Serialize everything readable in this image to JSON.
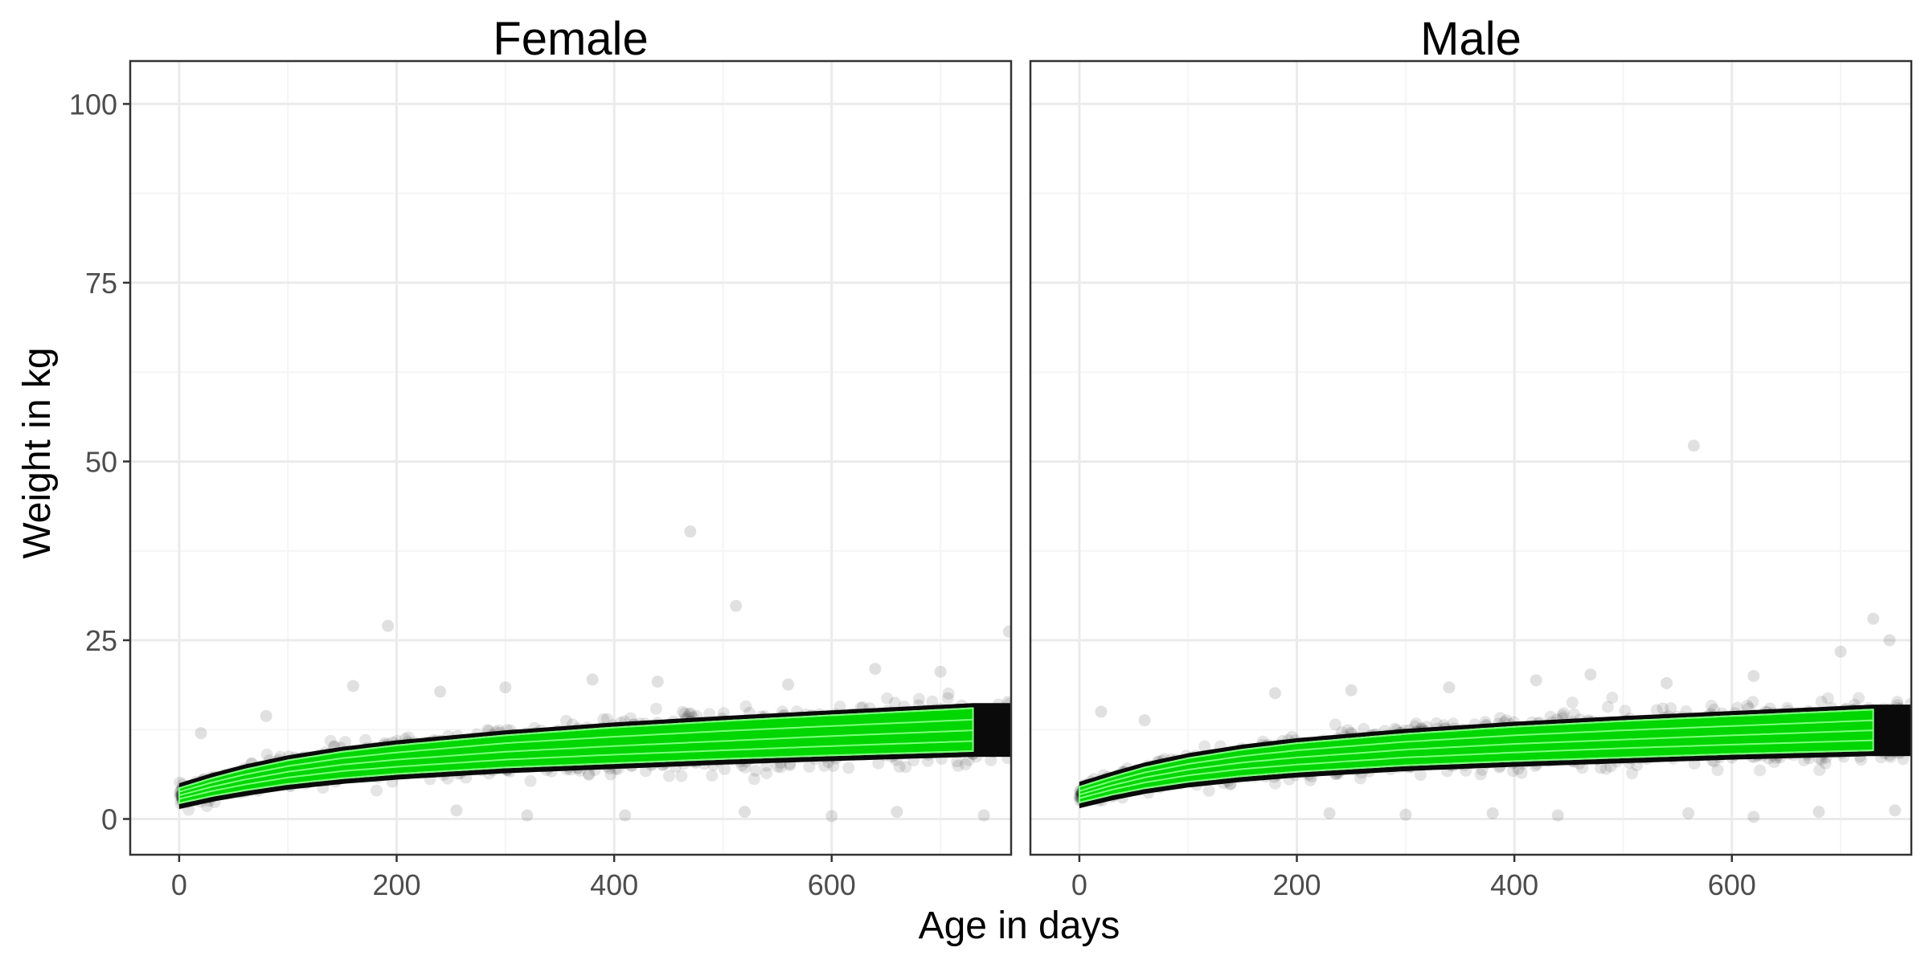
{
  "chart_data": {
    "type": "scatter",
    "xlabel": "Age in days",
    "ylabel": "Weight in kg",
    "xlim": [
      -45,
      765
    ],
    "ylim": [
      -5,
      106
    ],
    "x_ticks": [
      0,
      200,
      400,
      600
    ],
    "x_tick_labels": [
      "0",
      "200",
      "400",
      "600"
    ],
    "y_ticks": [
      0,
      25,
      50,
      75,
      100
    ],
    "y_tick_labels": [
      "0",
      "25",
      "50",
      "75",
      "100"
    ],
    "grid": true,
    "legend": "none",
    "colors": {
      "points": "#000000",
      "band_fill": "#00d600",
      "band_lines": "#7dff7d",
      "grid_major": "#ebebeb",
      "grid_minor": "#f5f5f5",
      "panel_border": "#333333"
    },
    "panels": [
      {
        "title": "Female",
        "centile_age": [
          0,
          30,
          60,
          100,
          150,
          200,
          300,
          400,
          500,
          600,
          730
        ],
        "centiles": [
          {
            "p": 3,
            "values": [
              2.2,
              3.2,
              4.0,
              4.9,
              5.7,
              6.3,
              7.2,
              7.8,
              8.4,
              8.9,
              9.5
            ]
          },
          {
            "p": 15,
            "values": [
              2.8,
              3.9,
              4.8,
              5.8,
              6.7,
              7.3,
              8.3,
              9.0,
              9.6,
              10.2,
              10.9
            ]
          },
          {
            "p": 50,
            "values": [
              3.3,
              4.5,
              5.5,
              6.6,
              7.6,
              8.3,
              9.4,
              10.2,
              10.9,
              11.6,
              12.4
            ]
          },
          {
            "p": 85,
            "values": [
              3.8,
              5.1,
              6.2,
              7.4,
              8.5,
              9.3,
              10.6,
              11.5,
              12.3,
              13.0,
              13.9
            ]
          },
          {
            "p": 97,
            "values": [
              4.3,
              5.7,
              6.9,
              8.2,
              9.4,
              10.3,
              11.7,
              12.8,
              13.7,
              14.5,
              15.5
            ]
          }
        ],
        "outliers": [
          {
            "x": 470,
            "y": 40.2
          },
          {
            "x": 512,
            "y": 29.8
          },
          {
            "x": 192,
            "y": 27.0
          },
          {
            "x": 763,
            "y": 26.2
          },
          {
            "x": 160,
            "y": 18.6
          },
          {
            "x": 380,
            "y": 19.5
          },
          {
            "x": 440,
            "y": 19.2
          },
          {
            "x": 560,
            "y": 18.8
          },
          {
            "x": 640,
            "y": 21.0
          },
          {
            "x": 700,
            "y": 20.6
          },
          {
            "x": 240,
            "y": 17.8
          },
          {
            "x": 300,
            "y": 18.4
          },
          {
            "x": 20,
            "y": 12.0
          },
          {
            "x": 80,
            "y": 14.4
          },
          {
            "x": 320,
            "y": 0.5
          },
          {
            "x": 410,
            "y": 0.5
          },
          {
            "x": 520,
            "y": 1.0
          },
          {
            "x": 600,
            "y": 0.4
          },
          {
            "x": 660,
            "y": 1.0
          },
          {
            "x": 740,
            "y": 0.5
          },
          {
            "x": 255,
            "y": 1.2
          }
        ]
      },
      {
        "title": "Male",
        "centile_age": [
          0,
          30,
          60,
          100,
          150,
          200,
          300,
          400,
          500,
          600,
          730
        ],
        "centiles": [
          {
            "p": 3,
            "values": [
              2.3,
              3.4,
              4.3,
              5.2,
              6.0,
              6.6,
              7.5,
              8.1,
              8.6,
              9.1,
              9.6
            ]
          },
          {
            "p": 15,
            "values": [
              2.9,
              4.1,
              5.1,
              6.1,
              7.0,
              7.6,
              8.6,
              9.3,
              9.9,
              10.4,
              11.0
            ]
          },
          {
            "p": 50,
            "values": [
              3.4,
              4.7,
              5.8,
              6.9,
              7.9,
              8.6,
              9.7,
              10.5,
              11.1,
              11.7,
              12.4
            ]
          },
          {
            "p": 85,
            "values": [
              3.9,
              5.3,
              6.5,
              7.7,
              8.8,
              9.6,
              10.8,
              11.7,
              12.4,
              13.0,
              13.8
            ]
          },
          {
            "p": 97,
            "values": [
              4.5,
              5.9,
              7.2,
              8.5,
              9.7,
              10.6,
              11.9,
              12.9,
              13.7,
              14.4,
              15.3
            ]
          }
        ],
        "outliers": [
          {
            "x": 565,
            "y": 52.2
          },
          {
            "x": 730,
            "y": 28.0
          },
          {
            "x": 745,
            "y": 25.0
          },
          {
            "x": 700,
            "y": 23.4
          },
          {
            "x": 620,
            "y": 20.0
          },
          {
            "x": 470,
            "y": 20.2
          },
          {
            "x": 420,
            "y": 19.4
          },
          {
            "x": 180,
            "y": 17.6
          },
          {
            "x": 250,
            "y": 18.0
          },
          {
            "x": 340,
            "y": 18.4
          },
          {
            "x": 540,
            "y": 19.0
          },
          {
            "x": 60,
            "y": 13.8
          },
          {
            "x": 20,
            "y": 15.0
          },
          {
            "x": 300,
            "y": 0.6
          },
          {
            "x": 380,
            "y": 0.8
          },
          {
            "x": 440,
            "y": 0.5
          },
          {
            "x": 560,
            "y": 0.8
          },
          {
            "x": 620,
            "y": 0.3
          },
          {
            "x": 680,
            "y": 1.0
          },
          {
            "x": 230,
            "y": 0.8
          },
          {
            "x": 750,
            "y": 1.2
          }
        ]
      }
    ]
  }
}
